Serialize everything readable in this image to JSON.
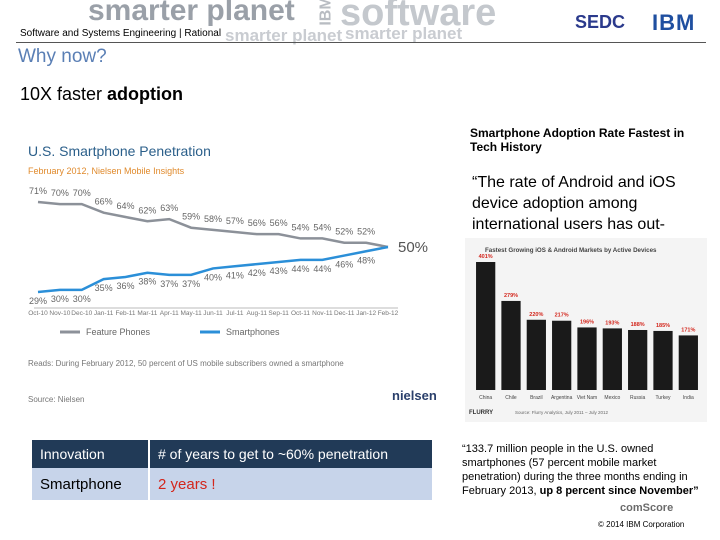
{
  "header": {
    "banner": [
      "smarter planet",
      "IBM",
      "software",
      "smarter planet",
      "smarter planet"
    ],
    "breadcrumb": "Software and Systems Engineering | Rational",
    "logos": [
      "SEDC",
      "IBM"
    ]
  },
  "title": "Why now?",
  "headline": {
    "text": "10X faster ",
    "bold": "adoption"
  },
  "chart_data": [
    {
      "type": "line",
      "title": "U.S. Smartphone Penetration",
      "subtitle": "February 2012, Nielsen Mobile Insights",
      "categories": [
        "Oct-10",
        "Nov-10",
        "Dec-10",
        "Jan-11",
        "Feb-11",
        "Mar-11",
        "Apr-11",
        "May-11",
        "Jun-11",
        "Jul-11",
        "Aug-11",
        "Sep-11",
        "Oct-11",
        "Nov-11",
        "Dec-11",
        "Jan-12",
        "Feb-12"
      ],
      "series": [
        {
          "name": "Feature Phones",
          "color": "#8c9199",
          "values": [
            71,
            70,
            70,
            66,
            64,
            62,
            63,
            59,
            58,
            57,
            56,
            56,
            54,
            54,
            52,
            52,
            50
          ],
          "value_labels": [
            "71%",
            "70%",
            "70%",
            "66%",
            "64%",
            "62%",
            "63%",
            "59%",
            "58%",
            "57%",
            "56%",
            "56%",
            "54%",
            "54%",
            "52%",
            "52%",
            "50%"
          ]
        },
        {
          "name": "Smartphones",
          "color": "#2b8fd8",
          "values": [
            29,
            30,
            30,
            35,
            36,
            38,
            37,
            37,
            40,
            41,
            42,
            43,
            44,
            44,
            46,
            48,
            50
          ],
          "value_labels": [
            "29%",
            "30%",
            "30%",
            "35%",
            "36%",
            "38%",
            "37%",
            "37%",
            "40%",
            "41%",
            "42%",
            "43%",
            "44%",
            "44%",
            "46%",
            "48%",
            null
          ]
        }
      ],
      "note": "Reads: During February 2012, 50 percent of US mobile subscribers owned a smartphone",
      "source": "Source: Nielsen",
      "logo": "nielsen"
    },
    {
      "type": "bar",
      "title": "Fastest Growing iOS & Android Markets by Active Devices",
      "categories": [
        "China",
        "Chile",
        "Brazil",
        "Argentina",
        "Viet Nam",
        "Mexico",
        "Russia",
        "Turkey",
        "India"
      ],
      "values": [
        401,
        279,
        220,
        217,
        196,
        193,
        188,
        185,
        171
      ],
      "value_labels": [
        "401%",
        "279%",
        "220%",
        "217%",
        "196%",
        "193%",
        "188%",
        "185%",
        "171%"
      ],
      "color": "#1a1a1a",
      "label_color": "#d3261c",
      "source": "Source: Flurry Analytics, July 2011 – July 2012",
      "logo": "FLURRY"
    }
  ],
  "side": {
    "heading": "Smartphone Adoption Rate Fastest in Tech History",
    "quote": "“The rate of Android and iOS device adoption among international users has out-"
  },
  "table": {
    "header": [
      "Innovation",
      "# of years to get to ~60% penetration"
    ],
    "rows": [
      [
        "Smartphone",
        "2 years !"
      ]
    ]
  },
  "quote": {
    "text": "“133.7 million people in the U.S. owned smartphones (57 percent mobile market penetration) during the three months ending in February 2013, ",
    "bold": "up 8 percent since November”"
  },
  "footer": {
    "logo": "comScore",
    "copyright": "© 2014 IBM Corporation"
  }
}
